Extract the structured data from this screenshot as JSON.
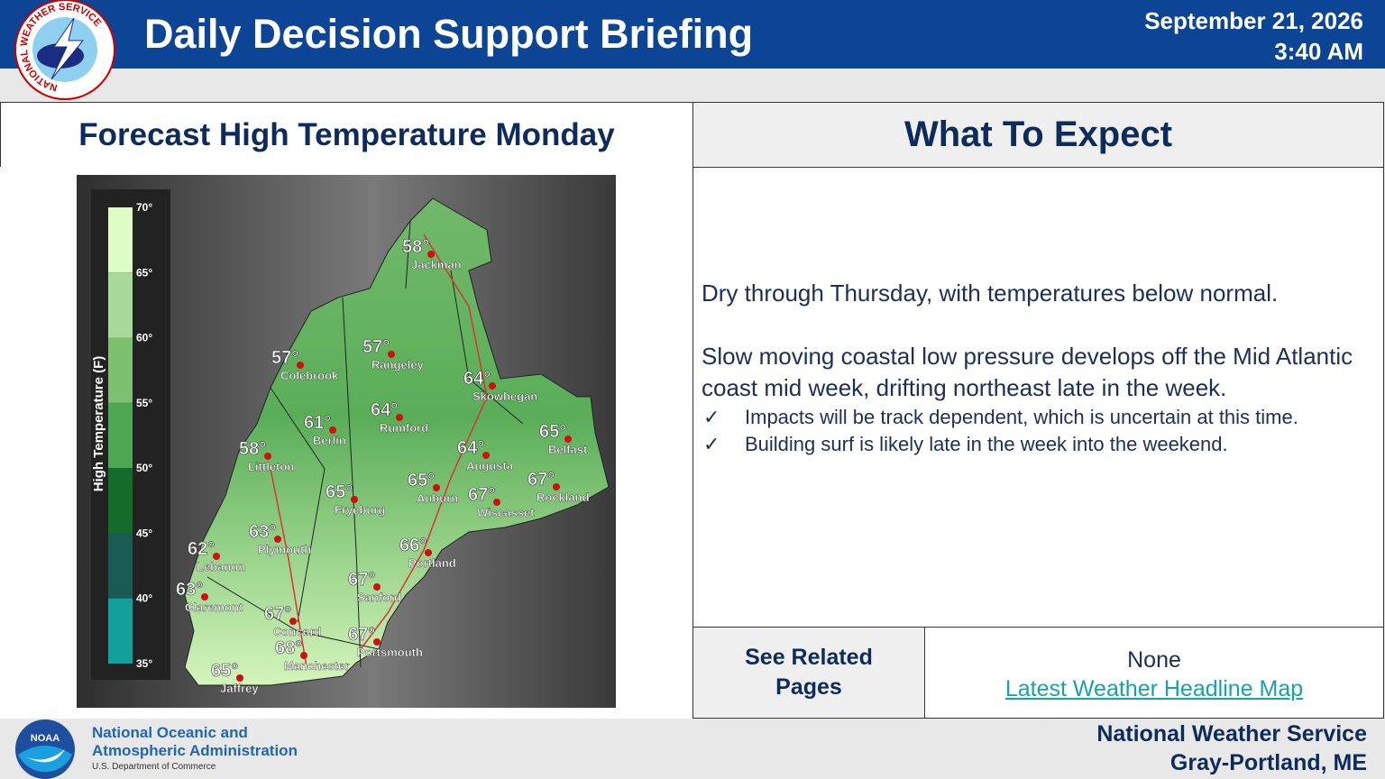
{
  "header": {
    "title": "Daily Decision Support Briefing",
    "date": "September 21, 2026",
    "time": "3:40 AM",
    "logo_text": "NATIONAL WEATHER SERVICE"
  },
  "left_panel": {
    "title": "Forecast High Temperature Monday",
    "map": {
      "legend_title": "High Temperature (F)",
      "legend_ticks": [
        "70°",
        "65°",
        "60°",
        "55°",
        "50°",
        "45°",
        "40°",
        "35°"
      ],
      "cities": [
        {
          "name": "Jackman",
          "temp": "58°"
        },
        {
          "name": "Colebrook",
          "temp": "57°"
        },
        {
          "name": "Rangeley",
          "temp": "57°"
        },
        {
          "name": "Skowhegan",
          "temp": "64°"
        },
        {
          "name": "Rumford",
          "temp": "64°"
        },
        {
          "name": "Berlin",
          "temp": "61°"
        },
        {
          "name": "Belfast",
          "temp": "65°"
        },
        {
          "name": "Littleton",
          "temp": "58°"
        },
        {
          "name": "Augusta",
          "temp": "64°"
        },
        {
          "name": "Rockland",
          "temp": "67°"
        },
        {
          "name": "Fryeburg",
          "temp": "65°"
        },
        {
          "name": "Auburn",
          "temp": "65°"
        },
        {
          "name": "Wiscasset",
          "temp": "67°"
        },
        {
          "name": "Plymouth",
          "temp": "63°"
        },
        {
          "name": "Lebanon",
          "temp": "62°"
        },
        {
          "name": "Portland",
          "temp": "66°"
        },
        {
          "name": "Sanford",
          "temp": "67°"
        },
        {
          "name": "Claremont",
          "temp": "63°"
        },
        {
          "name": "Concord",
          "temp": "67°"
        },
        {
          "name": "Portsmouth",
          "temp": "67°"
        },
        {
          "name": "Manchester",
          "temp": "68°"
        },
        {
          "name": "Jaffrey",
          "temp": "65°"
        }
      ]
    }
  },
  "right_panel": {
    "title": "What To Expect",
    "paragraphs": [
      "Dry through Thursday, with temperatures below normal.",
      "Slow moving coastal low pressure develops off the Mid Atlantic coast mid week, drifting northeast late in the week."
    ],
    "bullets": [
      "Impacts will be track dependent, which is uncertain at this time.",
      "Building surf is likely late in the week into the weekend."
    ]
  },
  "related": {
    "label": "See Related Pages",
    "items": [
      "None",
      "Latest Weather Headline Map"
    ]
  },
  "footer": {
    "agency": [
      "National Oceanic and",
      "Atmospheric Administration"
    ],
    "department": "U.S. Department of Commerce",
    "noaa_logo": "NOAA",
    "office": [
      "National Weather Service",
      "Gray-Portland, ME"
    ]
  }
}
